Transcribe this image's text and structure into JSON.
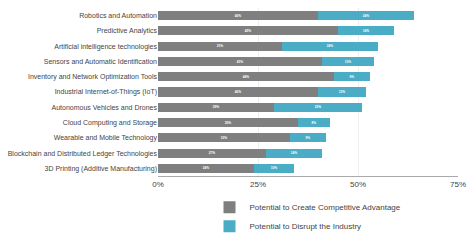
{
  "chart_data": {
    "type": "bar",
    "orientation": "horizontal",
    "stacked": true,
    "data_labels": true,
    "grid": true,
    "legend": "bottom",
    "categories": [
      "Robotics and Automation",
      "Predictive Analytics",
      "Artificial intelligence technologies",
      "Sensors and Automatic Identification",
      "Inventory and Network Optimization Tools",
      "Industrial Internet-of-Things (IoT)",
      "Autonomous Vehicles and Drones",
      "Cloud Computing and Storage",
      "Wearable and Mobile Technology",
      "Blockchain and Distributed Ledger Technologies",
      "3D Printing (Additive Manufacturing)"
    ],
    "series": [
      {
        "name": "Potential to Create Competitive Advantage",
        "color": "#7f7f7f",
        "values": [
          40,
          45,
          31,
          41,
          44,
          40,
          29,
          35,
          33,
          27,
          24
        ],
        "value_labels": [
          "40%",
          "45%",
          "31%",
          "41%",
          "44%",
          "40%",
          "29%",
          "35%",
          "33%",
          "27%",
          "24%"
        ]
      },
      {
        "name": "Potential to Disrupt the Industry",
        "color": "#4BACC6",
        "values": [
          24,
          14,
          24,
          13,
          9,
          12,
          22,
          8,
          9,
          14,
          10
        ],
        "value_labels": [
          "24%",
          "14%",
          "24%",
          "13%",
          "9%",
          "12%",
          "22%",
          "8%",
          "9%",
          "14%",
          "10%"
        ]
      }
    ],
    "xlim": [
      0,
      75
    ],
    "xticks": [
      {
        "value": 0,
        "label": "0%"
      },
      {
        "value": 25,
        "label": "25%"
      },
      {
        "value": 50,
        "label": "50%"
      },
      {
        "value": 75,
        "label": "75%"
      }
    ]
  }
}
